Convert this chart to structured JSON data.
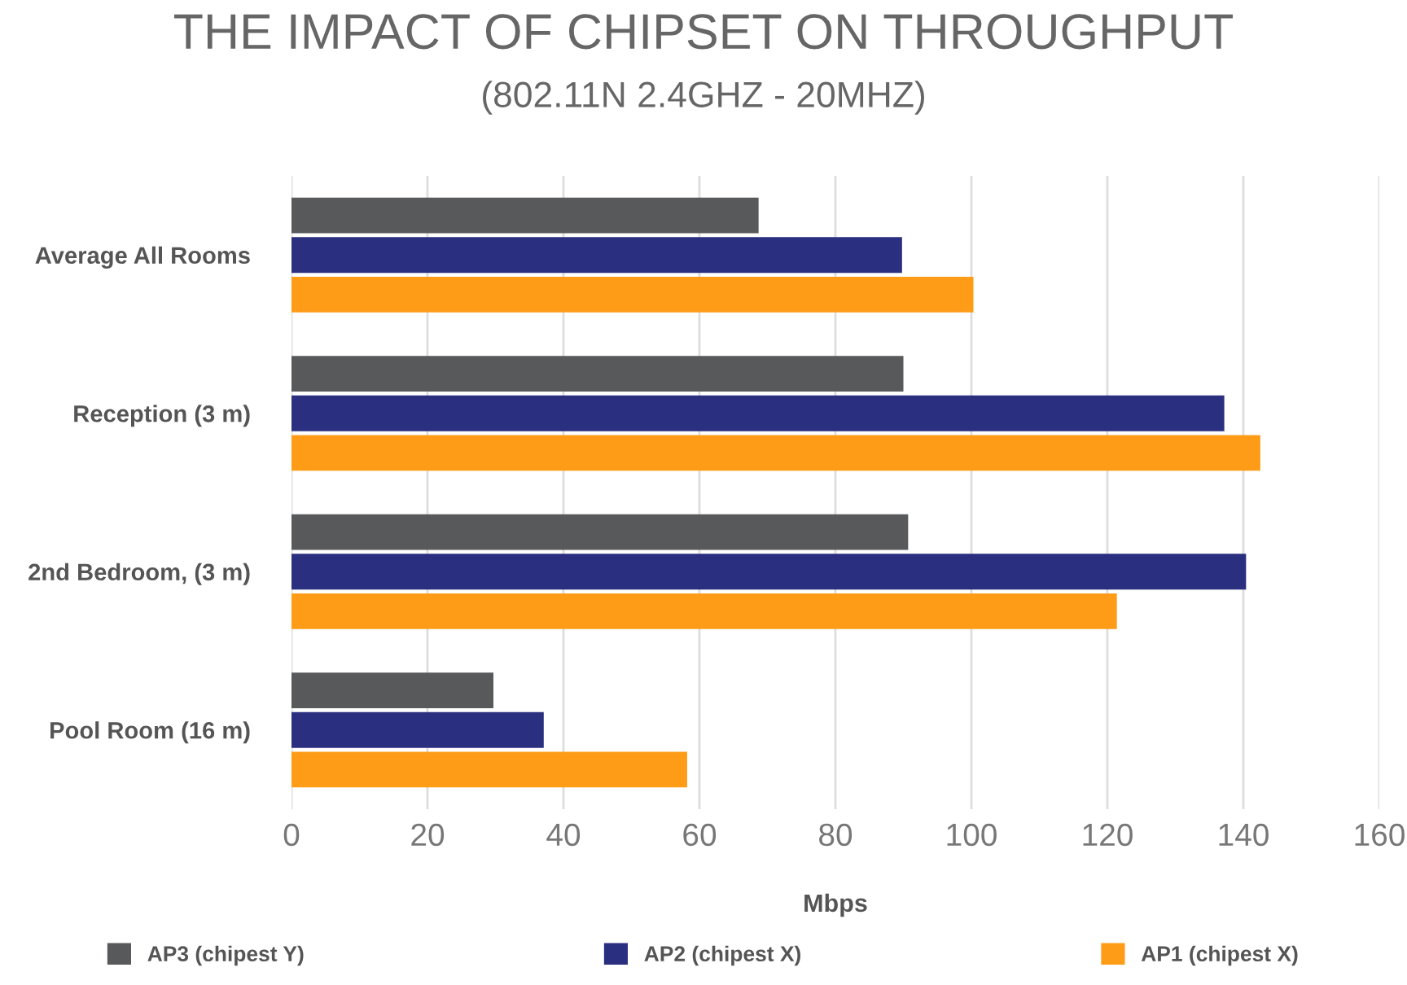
{
  "chart_data": {
    "type": "bar",
    "orientation": "horizontal",
    "title": "THE IMPACT OF CHIPSET ON THROUGHPUT",
    "subtitle": "(802.11N 2.4GHZ - 20MHZ)",
    "xlabel": "Mbps",
    "categories": [
      "Average All Rooms",
      "Reception (3 m)",
      "2nd Bedroom, (3 m)",
      "Pool Room (16 m)"
    ],
    "series": [
      {
        "name": "AP3 (chipest Y)",
        "color": "#58595b",
        "values": [
          68.7,
          90,
          90.7,
          29.7
        ]
      },
      {
        "name": "AP2 (chipest X)",
        "color": "#2b2f7f",
        "values": [
          89.8,
          137.2,
          140.4,
          37.1
        ]
      },
      {
        "name": "AP1 (chipest X)",
        "color": "#ff9c17",
        "values": [
          100.3,
          142.5,
          121.4,
          58.2
        ]
      }
    ],
    "xlim": [
      0,
      160
    ],
    "xticks": [
      0,
      20,
      40,
      60,
      80,
      100,
      120,
      140,
      160
    ],
    "grid": "x",
    "legend": "bottom"
  }
}
